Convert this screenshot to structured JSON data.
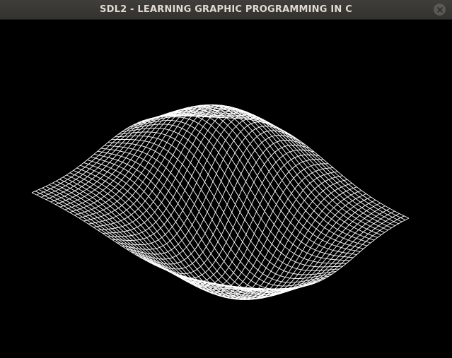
{
  "window": {
    "title": "SDL2 - LEARNING GRAPHIC PROGRAMMING IN C"
  },
  "titlebar_buttons": {
    "close_icon": "close-icon"
  },
  "render": {
    "surface": "wireframe mesh",
    "background_color": "#000000",
    "line_color": "#ffffff"
  }
}
